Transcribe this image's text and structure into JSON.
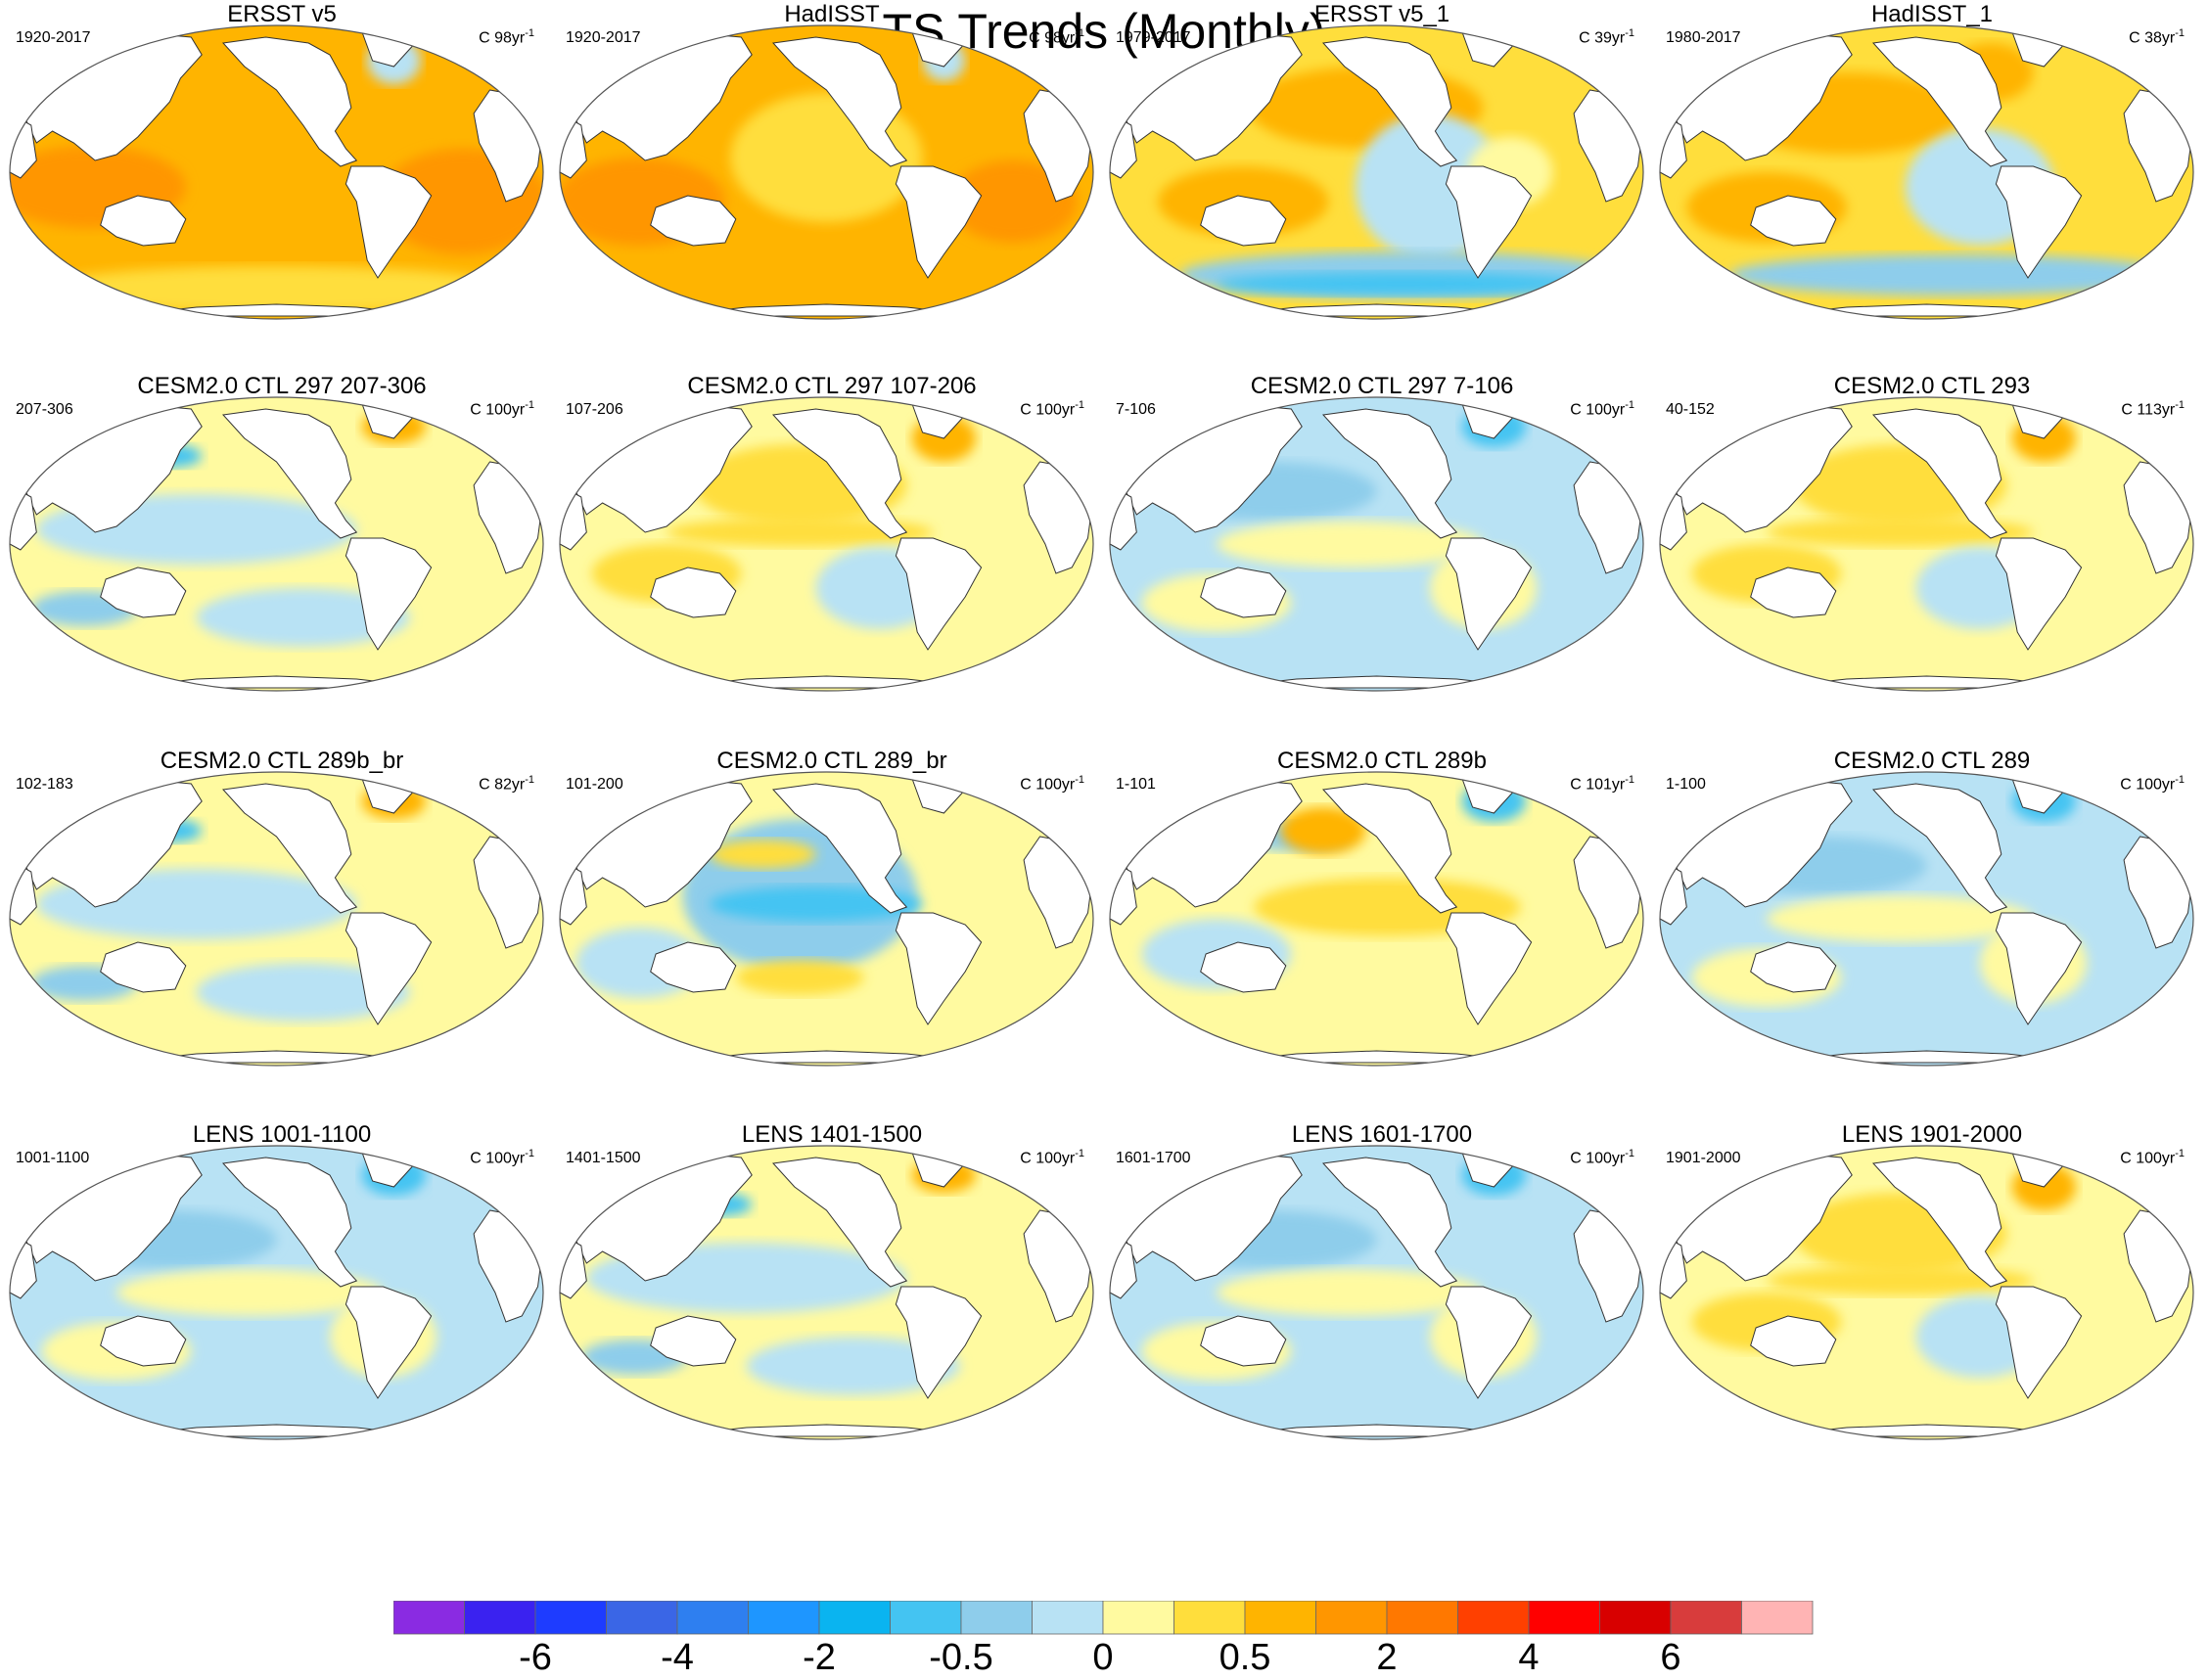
{
  "title": "TS Trends (Monthly)",
  "unit_prefix": "C ",
  "unit_suffix": "yr",
  "unit_exponent": "-1",
  "panels": [
    {
      "title": "ERSST v5",
      "left": "1920-2017",
      "right": "98",
      "style": "warm"
    },
    {
      "title": "HadISST",
      "left": "1920-2017",
      "right": "98",
      "style": "warm2"
    },
    {
      "title": "ERSST v5_1",
      "left": "1979-2017",
      "right": "39",
      "style": "mixed"
    },
    {
      "title": "HadISST_1",
      "left": "1980-2017",
      "right": "38",
      "style": "mixed2"
    },
    {
      "title": "CESM2.0 CTL 297 207-306",
      "left": "207-306",
      "right": "100",
      "style": "neutral"
    },
    {
      "title": "CESM2.0 CTL 297 107-206",
      "left": "107-206",
      "right": "100",
      "style": "neutral_warm"
    },
    {
      "title": "CESM2.0 CTL 297 7-106",
      "left": "7-106",
      "right": "100",
      "style": "neutral_cool"
    },
    {
      "title": "CESM2.0 CTL 293",
      "left": "40-152",
      "right": "113",
      "style": "neutral_warm"
    },
    {
      "title": "CESM2.0 CTL 289b_br",
      "left": "102-183",
      "right": "82",
      "style": "neutral"
    },
    {
      "title": "CESM2.0 CTL 289_br",
      "left": "101-200",
      "right": "100",
      "style": "lanina"
    },
    {
      "title": "CESM2.0 CTL 289b",
      "left": "1-101",
      "right": "101",
      "style": "elnino"
    },
    {
      "title": "CESM2.0 CTL 289",
      "left": "1-100",
      "right": "100",
      "style": "neutral_cool"
    },
    {
      "title": "LENS 1001-1100",
      "left": "1001-1100",
      "right": "100",
      "style": "neutral_cool"
    },
    {
      "title": "LENS 1401-1500",
      "left": "1401-1500",
      "right": "100",
      "style": "neutral"
    },
    {
      "title": "LENS 1601-1700",
      "left": "1601-1700",
      "right": "100",
      "style": "neutral_cool"
    },
    {
      "title": "LENS 1901-2000",
      "left": "1901-2000",
      "right": "100",
      "style": "neutral_warm"
    }
  ],
  "colorbar": {
    "colors": [
      "#8a2be2",
      "#3a22f0",
      "#1e3cff",
      "#3a66e6",
      "#2e7ff0",
      "#1e96ff",
      "#0ab4f0",
      "#44c4f2",
      "#8ecdeb",
      "#b8e2f4",
      "#fffaa0",
      "#ffde3c",
      "#ffb400",
      "#ff9600",
      "#ff7800",
      "#ff4000",
      "#ff0000",
      "#d80000",
      "#d83c3c",
      "#ffb4b4"
    ],
    "labels": [
      "-6",
      "-4",
      "-2",
      "-0.5",
      "0",
      "0.5",
      "2",
      "4",
      "6"
    ],
    "label_boundaries": [
      2,
      4,
      6,
      8,
      10,
      12,
      14,
      16,
      18
    ]
  }
}
